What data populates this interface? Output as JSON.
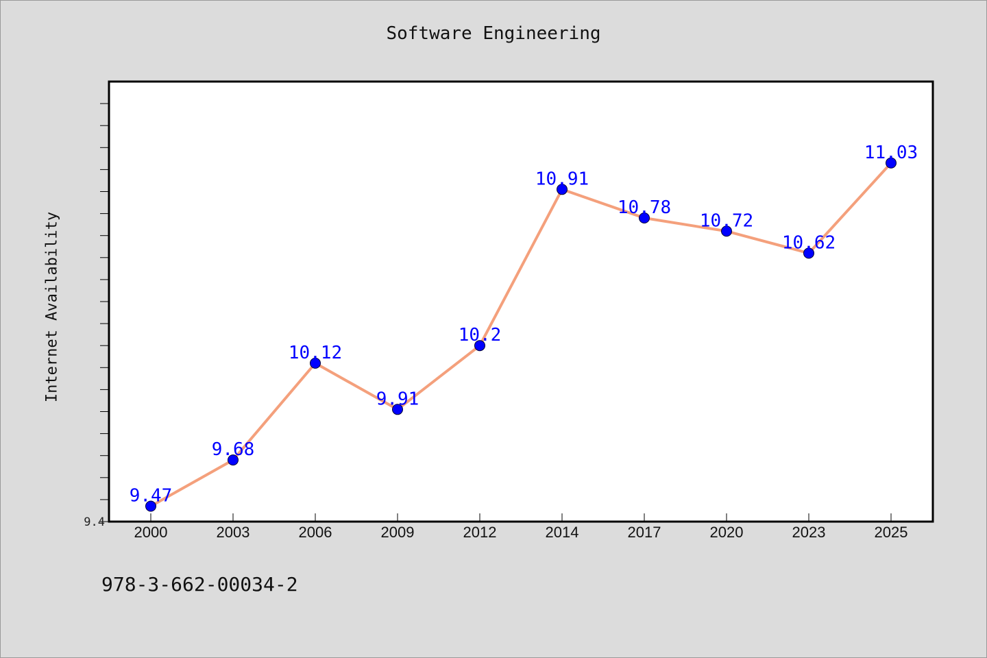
{
  "chart_data": {
    "type": "line",
    "title": "Software Engineering",
    "xlabel": "",
    "ylabel": "Internet Availability",
    "categories": [
      "2000",
      "2003",
      "2006",
      "2009",
      "2012",
      "2014",
      "2017",
      "2020",
      "2023",
      "2025"
    ],
    "values": [
      9.47,
      9.68,
      10.12,
      9.91,
      10.2,
      10.91,
      10.78,
      10.72,
      10.62,
      11.03
    ],
    "data_labels": [
      "9.47",
      "9.68",
      "10.12",
      "9.91",
      "10.2",
      "10.91",
      "10.78",
      "10.72",
      "10.62",
      "11.03"
    ],
    "y_tick_label": "9.4",
    "ylim": [
      9.4,
      11.4
    ],
    "grid": false,
    "line_color": "#f4a07c",
    "marker_color": "#0000ff",
    "label_color": "#0000ff"
  },
  "footer": {
    "isbn": "978-3-662-00034-2"
  }
}
